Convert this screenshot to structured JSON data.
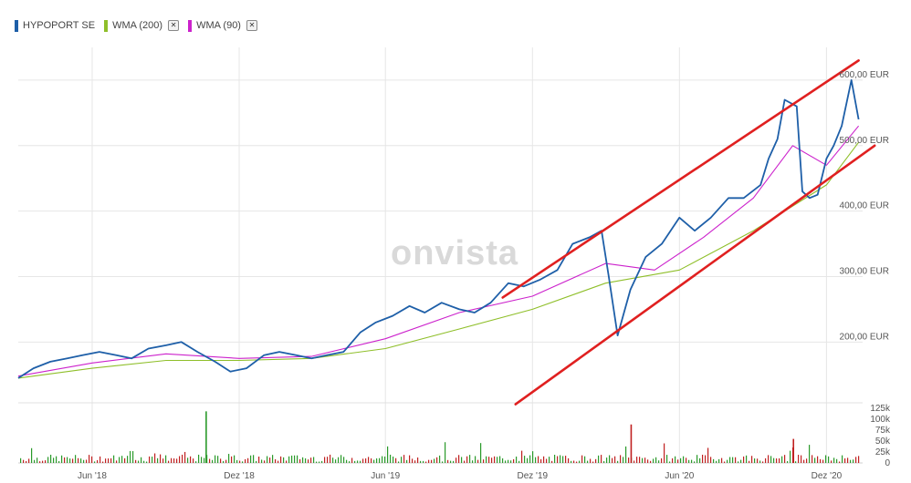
{
  "legend": [
    {
      "label": "HYPOPORT SE",
      "color": "#1e5fa8",
      "removable": false
    },
    {
      "label": "WMA (200)",
      "color": "#8fbf2a",
      "removable": true
    },
    {
      "label": "WMA (90)",
      "color": "#cc22cc",
      "removable": true
    }
  ],
  "legend_close_glyph": "✕",
  "watermark": "onvista",
  "chart_data": {
    "type": "line",
    "y_ticks": [
      "600,00 EUR",
      "500,00 EUR",
      "400,00 EUR",
      "300,00 EUR",
      "200,00 EUR"
    ],
    "y_tick_values": [
      600,
      500,
      400,
      300,
      200
    ],
    "ylim": [
      110,
      650
    ],
    "x_ticks": [
      "Jun '18",
      "Dez '18",
      "Jun '19",
      "Dez '19",
      "Jun '20",
      "Dez '20"
    ],
    "x_tick_positions": [
      "2018-06-01",
      "2018-12-01",
      "2019-06-01",
      "2019-12-01",
      "2020-06-01",
      "2020-12-01"
    ],
    "xlim": [
      "2018-03-01",
      "2021-01-15"
    ],
    "series": [
      {
        "name": "HYPOPORT SE",
        "color": "#1e5fa8",
        "x": [
          "2018-03-01",
          "2018-03-20",
          "2018-04-10",
          "2018-05-01",
          "2018-05-20",
          "2018-06-10",
          "2018-07-01",
          "2018-07-20",
          "2018-08-10",
          "2018-09-01",
          "2018-09-20",
          "2018-10-10",
          "2018-11-01",
          "2018-11-20",
          "2018-12-10",
          "2019-01-01",
          "2019-01-20",
          "2019-02-10",
          "2019-03-01",
          "2019-03-20",
          "2019-04-10",
          "2019-05-01",
          "2019-05-20",
          "2019-06-10",
          "2019-07-01",
          "2019-07-20",
          "2019-08-10",
          "2019-09-01",
          "2019-09-20",
          "2019-10-10",
          "2019-11-01",
          "2019-11-20",
          "2019-12-10",
          "2020-01-01",
          "2020-01-20",
          "2020-02-10",
          "2020-02-25",
          "2020-03-05",
          "2020-03-16",
          "2020-04-01",
          "2020-04-20",
          "2020-05-10",
          "2020-06-01",
          "2020-06-20",
          "2020-07-10",
          "2020-08-01",
          "2020-08-20",
          "2020-09-10",
          "2020-09-20",
          "2020-10-01",
          "2020-10-10",
          "2020-10-25",
          "2020-11-01",
          "2020-11-10",
          "2020-11-20",
          "2020-12-01",
          "2020-12-10",
          "2020-12-20",
          "2021-01-01",
          "2021-01-10"
        ],
        "y": [
          145,
          160,
          170,
          175,
          180,
          185,
          180,
          175,
          190,
          195,
          200,
          185,
          170,
          155,
          160,
          180,
          185,
          180,
          175,
          180,
          185,
          215,
          230,
          240,
          255,
          245,
          260,
          250,
          245,
          260,
          290,
          285,
          295,
          310,
          350,
          360,
          370,
          300,
          210,
          280,
          330,
          350,
          390,
          370,
          390,
          420,
          420,
          440,
          480,
          510,
          570,
          560,
          430,
          420,
          425,
          480,
          500,
          530,
          600,
          540
        ],
        "dashed": false
      },
      {
        "name": "WMA (200)",
        "color": "#8fbf2a",
        "x": [
          "2018-03-01",
          "2018-06-01",
          "2018-09-01",
          "2018-12-01",
          "2019-03-01",
          "2019-06-01",
          "2019-09-01",
          "2019-12-01",
          "2020-03-01",
          "2020-06-01",
          "2020-09-01",
          "2020-12-01",
          "2021-01-10"
        ],
        "y": [
          145,
          160,
          172,
          172,
          175,
          190,
          220,
          250,
          290,
          310,
          370,
          440,
          505
        ],
        "dashed": false
      },
      {
        "name": "WMA (90)",
        "color": "#cc22cc",
        "x": [
          "2018-03-01",
          "2018-06-01",
          "2018-09-01",
          "2018-12-01",
          "2019-03-01",
          "2019-06-01",
          "2019-09-01",
          "2019-12-01",
          "2020-03-01",
          "2020-05-01",
          "2020-07-01",
          "2020-09-01",
          "2020-10-20",
          "2020-12-01",
          "2021-01-10"
        ],
        "y": [
          148,
          168,
          182,
          175,
          178,
          205,
          245,
          270,
          320,
          310,
          360,
          420,
          500,
          470,
          530
        ],
        "dashed": false
      }
    ],
    "annotations": [
      {
        "type": "trendline",
        "color": "#e02020",
        "from": [
          "2019-10-25",
          268
        ],
        "to": [
          "2021-01-10",
          630
        ]
      },
      {
        "type": "trendline",
        "color": "#e02020",
        "from": [
          "2019-11-10",
          105
        ],
        "to": [
          "2021-01-30",
          500
        ]
      }
    ],
    "volume": {
      "ylim": [
        0,
        125000
      ],
      "y_ticks": [
        "125k",
        "100k",
        "75k",
        "50k",
        "25k",
        "0"
      ],
      "y_tick_values": [
        125000,
        100000,
        75000,
        50000,
        25000,
        0
      ],
      "spikes": [
        {
          "x": "2018-10-20",
          "value": 118000,
          "color": "#2a9a2a"
        },
        {
          "x": "2020-04-01",
          "value": 88000,
          "color": "#c02020"
        },
        {
          "x": "2020-10-20",
          "value": 55000,
          "color": "#c02020"
        }
      ],
      "typical_value": 10000
    },
    "grid": true,
    "legend_position": "top-left"
  }
}
